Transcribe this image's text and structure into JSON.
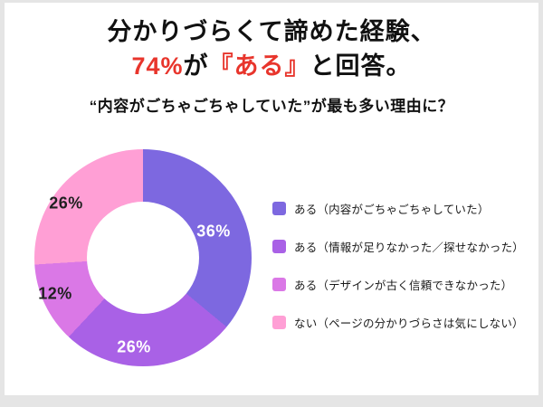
{
  "page": {
    "background_color": "#e5e5e5",
    "card_color": "#ffffff"
  },
  "title": {
    "line1": "分かりづらくて諦めた経験、",
    "line2": {
      "p1": "74%",
      "p2": "が",
      "p3": "『ある』",
      "p4": "と回答。"
    },
    "subtitle": "“内容がごちゃごちゃしていた”が最も多い理由に？",
    "accent_color": "#e8352c",
    "text_color": "#111111"
  },
  "chart_data": {
    "type": "pie",
    "style": "donut",
    "categories": [
      "ある（内容がごちゃごちゃしていた）",
      "ある（情報が足りなかった／探せなかった）",
      "ある（デザインが古く信頼できなかった）",
      "ない（ページの分かりづらさは気にしない）"
    ],
    "values": [
      36,
      26,
      12,
      26
    ],
    "unit": "%",
    "slice_labels": [
      "36%",
      "26%",
      "12%",
      "26%"
    ],
    "colors": [
      "#7d68e0",
      "#a961e6",
      "#da78e6",
      "#ff9fd5"
    ],
    "label_colors": [
      "#ffffff",
      "#ffffff",
      "#1f1f1f",
      "#1f1f1f"
    ],
    "legend_position": "right",
    "start_angle_deg": 0,
    "direction": "clockwise"
  }
}
